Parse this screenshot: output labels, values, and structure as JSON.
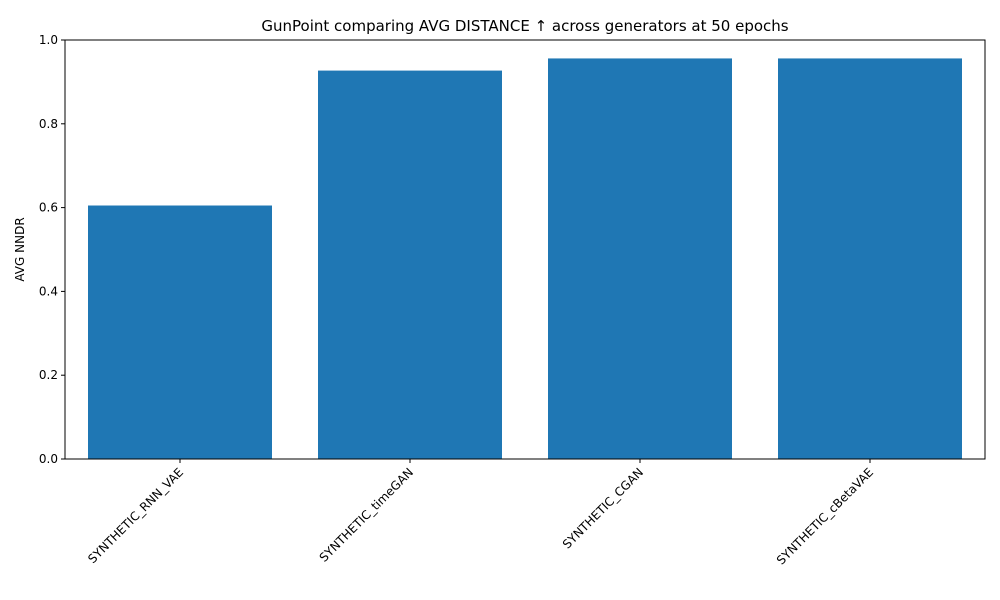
{
  "chart_data": {
    "type": "bar",
    "title": "GunPoint comparing AVG DISTANCE ↑  across generators at 50 epochs",
    "xlabel": "",
    "ylabel": "AVG NNDR",
    "categories": [
      "SYNTHETIC_RNN_VAE",
      "SYNTHETIC_timeGAN",
      "SYNTHETIC_CGAN",
      "SYNTHETIC_cBetaVAE"
    ],
    "values": [
      0.605,
      0.927,
      0.956,
      0.956
    ],
    "ylim": [
      0,
      1.0
    ],
    "yticks": [
      "0.0",
      "0.2",
      "0.4",
      "0.6",
      "0.8",
      "1.0"
    ],
    "bar_color": "#1f77b4",
    "grid": false,
    "legend": "none"
  }
}
